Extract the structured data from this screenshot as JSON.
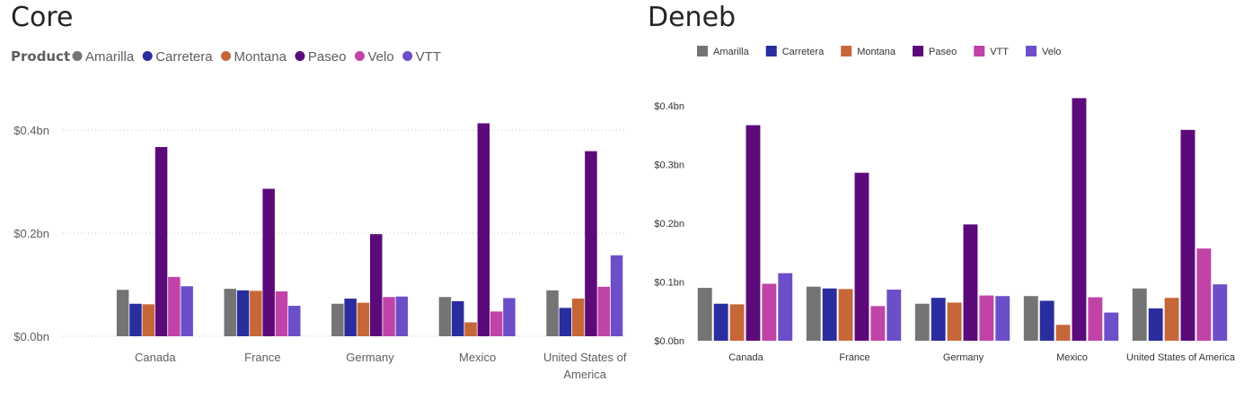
{
  "colors": {
    "Amarilla": "#747474",
    "Carretera": "#2a2d9e",
    "Montana": "#c6673a",
    "Paseo": "#5c0a7a",
    "Velo_core": "#c044a8",
    "VTT_core": "#6c4fc8",
    "VTT_deneb": "#c044a8",
    "Velo_deneb": "#6c4fc8"
  },
  "chart_data": [
    {
      "type": "bar",
      "title": "Core",
      "legend_title": "Product",
      "legend_position": "top-left",
      "categories": [
        "Canada",
        "France",
        "Germany",
        "Mexico",
        "United States of America"
      ],
      "category_labels": [
        [
          "Canada"
        ],
        [
          "France"
        ],
        [
          "Germany"
        ],
        [
          "Mexico"
        ],
        [
          "United States of",
          "America"
        ]
      ],
      "series": [
        {
          "name": "Amarilla",
          "values": [
            0.09,
            0.092,
            0.063,
            0.076,
            0.089
          ]
        },
        {
          "name": "Carretera",
          "values": [
            0.063,
            0.089,
            0.073,
            0.068,
            0.055
          ]
        },
        {
          "name": "Montana",
          "values": [
            0.062,
            0.088,
            0.065,
            0.027,
            0.073
          ]
        },
        {
          "name": "Paseo",
          "values": [
            0.367,
            0.286,
            0.198,
            0.413,
            0.359
          ]
        },
        {
          "name": "Velo",
          "values": [
            0.115,
            0.087,
            0.076,
            0.048,
            0.096
          ]
        },
        {
          "name": "VTT",
          "values": [
            0.097,
            0.059,
            0.077,
            0.074,
            0.157
          ]
        }
      ],
      "yticks": [
        "$0.0bn",
        "$0.2bn",
        "$0.4bn"
      ],
      "ytick_values": [
        0,
        0.2,
        0.4
      ],
      "ylim": [
        0,
        0.44
      ],
      "grid": true
    },
    {
      "type": "bar",
      "title": "Deneb",
      "legend_position": "top-left",
      "categories": [
        "Canada",
        "France",
        "Germany",
        "Mexico",
        "United States of America"
      ],
      "category_labels": [
        [
          "Canada"
        ],
        [
          "France"
        ],
        [
          "Germany"
        ],
        [
          "Mexico"
        ],
        [
          "United States of America"
        ]
      ],
      "series": [
        {
          "name": "Amarilla",
          "values": [
            0.09,
            0.092,
            0.063,
            0.076,
            0.089
          ]
        },
        {
          "name": "Carretera",
          "values": [
            0.063,
            0.089,
            0.073,
            0.068,
            0.055
          ]
        },
        {
          "name": "Montana",
          "values": [
            0.062,
            0.088,
            0.065,
            0.027,
            0.073
          ]
        },
        {
          "name": "Paseo",
          "values": [
            0.367,
            0.286,
            0.198,
            0.413,
            0.359
          ]
        },
        {
          "name": "VTT",
          "values": [
            0.097,
            0.059,
            0.077,
            0.074,
            0.157
          ]
        },
        {
          "name": "Velo",
          "values": [
            0.115,
            0.087,
            0.076,
            0.048,
            0.096
          ]
        }
      ],
      "yticks": [
        "$0.0bn",
        "$0.1bn",
        "$0.2bn",
        "$0.3bn",
        "$0.4bn"
      ],
      "ytick_values": [
        0,
        0.1,
        0.2,
        0.3,
        0.4
      ],
      "ylim": [
        0,
        0.42
      ],
      "grid": false
    }
  ]
}
